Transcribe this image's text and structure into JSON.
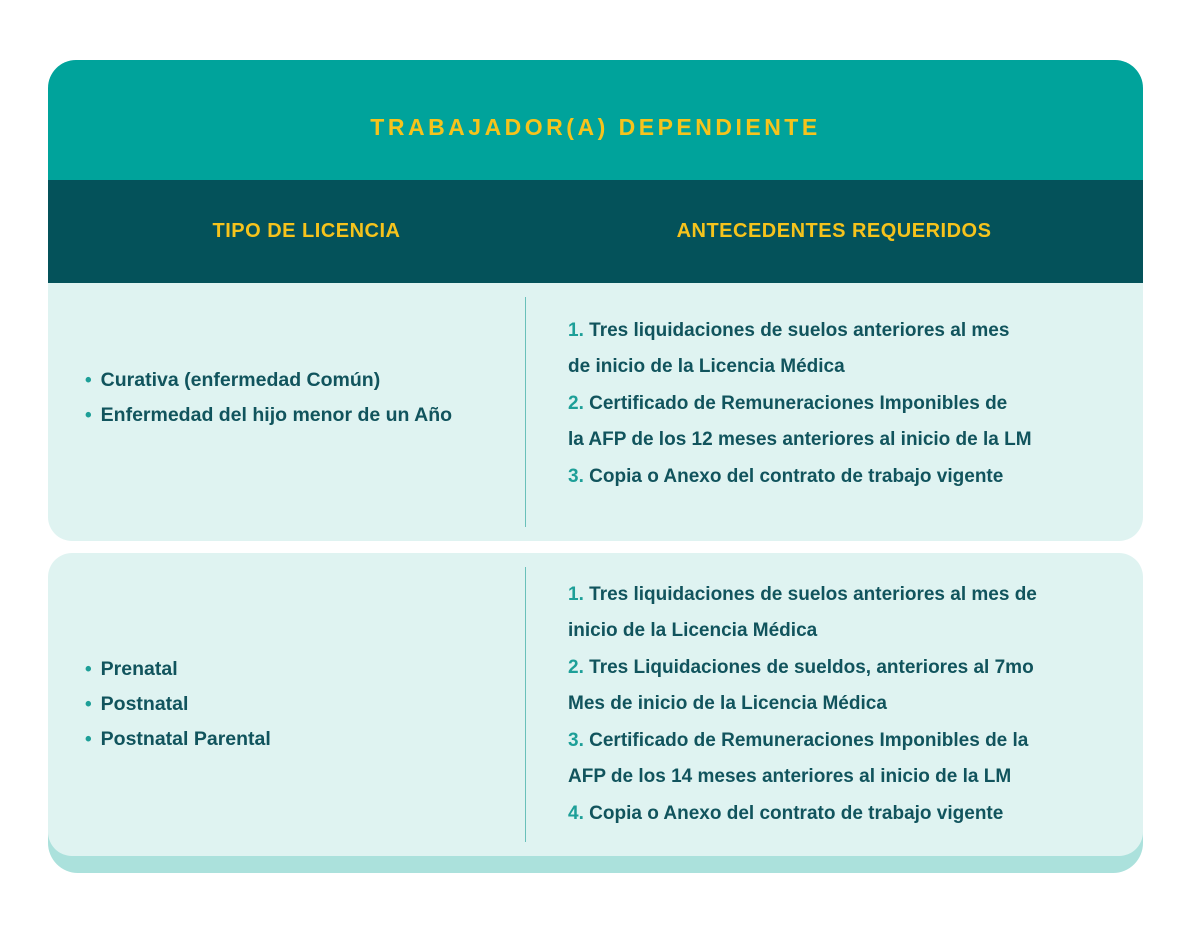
{
  "title": "TRABAJADOR(A) DEPENDIENTE",
  "columns": {
    "left": "TIPO DE LICENCIA",
    "right": "ANTECEDENTES REQUERIDOS"
  },
  "bullet_glyph": "•",
  "colors": {
    "header_teal": "#00A39B",
    "dark_band": "#04525A",
    "row_light": "#DFF3F1",
    "base_mint": "#ABE1DC",
    "gold_text": "#F6C31C",
    "body_text": "#11545D",
    "accent_teal": "#1D9F98",
    "divider": "#69C0BA"
  },
  "rows": [
    {
      "licenses": [
        "Curativa (enfermedad Común)",
        "Enfermedad del hijo menor de un Año"
      ],
      "requirements": [
        {
          "num": "1.",
          "text": " Tres liquidaciones de suelos anteriores al mes\nde inicio de la Licencia Médica"
        },
        {
          "num": "2.",
          "text": " Certificado de Remuneraciones Imponibles de\nla AFP de los 12 meses anteriores al inicio de la LM"
        },
        {
          "num": "3.",
          "text": " Copia o Anexo del contrato de trabajo vigente"
        }
      ]
    },
    {
      "licenses": [
        "Prenatal",
        "Postnatal",
        "Postnatal Parental"
      ],
      "requirements": [
        {
          "num": "1.",
          "text": " Tres liquidaciones de suelos anteriores al mes de\ninicio de la Licencia Médica"
        },
        {
          "num": "2.",
          "text": " Tres Liquidaciones de sueldos, anteriores al 7mo\nMes de inicio de la Licencia Médica"
        },
        {
          "num": "3.",
          "text": " Certificado de Remuneraciones Imponibles de la\nAFP de los 14 meses anteriores al inicio de la LM"
        },
        {
          "num": "4.",
          "text": " Copia o Anexo del contrato de trabajo vigente"
        }
      ]
    }
  ]
}
